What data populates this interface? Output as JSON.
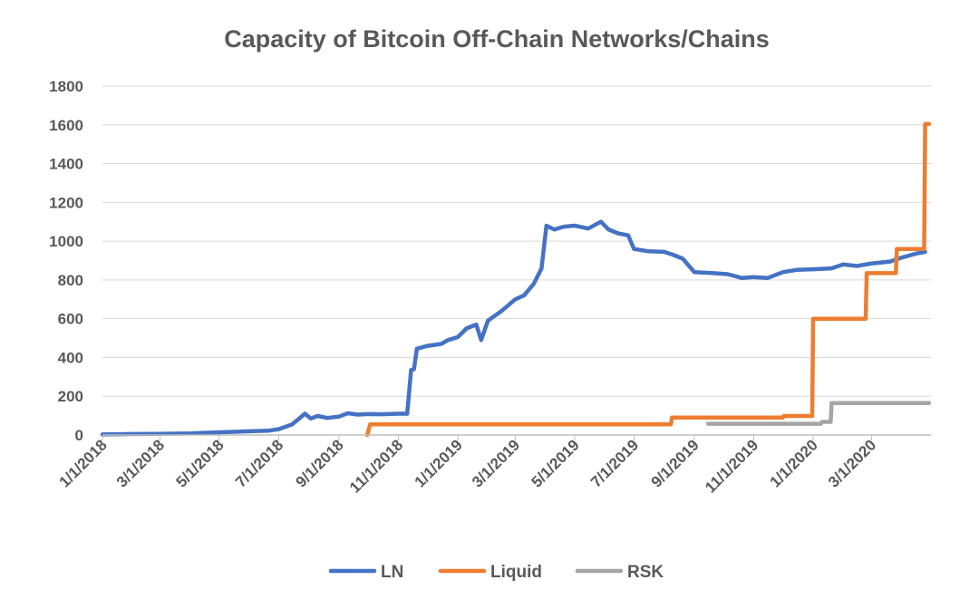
{
  "chart_data": {
    "type": "line",
    "title": "Capacity of Bitcoin Off-Chain Networks/Chains",
    "xlabel": "",
    "ylabel": "",
    "x_axis": {
      "start": "2018-01-01",
      "end": "2020-05-01",
      "tick_labels": [
        "1/1/2018",
        "3/1/2018",
        "5/1/2018",
        "7/1/2018",
        "9/1/2018",
        "11/1/2018",
        "1/1/2019",
        "3/1/2019",
        "5/1/2019",
        "7/1/2019",
        "9/1/2019",
        "11/1/2019",
        "1/1/2020",
        "3/1/2020"
      ],
      "tick_dates": [
        "2018-01-01",
        "2018-03-01",
        "2018-05-01",
        "2018-07-01",
        "2018-09-01",
        "2018-11-01",
        "2019-01-01",
        "2019-03-01",
        "2019-05-01",
        "2019-07-01",
        "2019-09-01",
        "2019-11-01",
        "2020-01-01",
        "2020-03-01"
      ]
    },
    "ylim": [
      0,
      1800
    ],
    "y_ticks": [
      0,
      200,
      400,
      600,
      800,
      1000,
      1200,
      1400,
      1600,
      1800
    ],
    "y_tick_labels": [
      "0",
      "200",
      "400",
      "600",
      "800",
      "1000",
      "1200",
      "1400",
      "1600",
      "1800"
    ],
    "grid": true,
    "legend_position": "bottom",
    "series": [
      {
        "name": "LN",
        "color": "#4472C4",
        "step": false,
        "points": [
          [
            "2018-01-01",
            3
          ],
          [
            "2018-02-01",
            5
          ],
          [
            "2018-03-01",
            6
          ],
          [
            "2018-04-01",
            8
          ],
          [
            "2018-05-01",
            14
          ],
          [
            "2018-06-01",
            19
          ],
          [
            "2018-06-20",
            22
          ],
          [
            "2018-07-01",
            30
          ],
          [
            "2018-07-15",
            55
          ],
          [
            "2018-07-28",
            110
          ],
          [
            "2018-08-03",
            85
          ],
          [
            "2018-08-10",
            98
          ],
          [
            "2018-08-20",
            88
          ],
          [
            "2018-09-01",
            95
          ],
          [
            "2018-09-10",
            112
          ],
          [
            "2018-09-20",
            105
          ],
          [
            "2018-10-01",
            108
          ],
          [
            "2018-10-15",
            107
          ],
          [
            "2018-11-01",
            110
          ],
          [
            "2018-11-10",
            110
          ],
          [
            "2018-11-14",
            335
          ],
          [
            "2018-11-17",
            340
          ],
          [
            "2018-11-20",
            445
          ],
          [
            "2018-12-01",
            460
          ],
          [
            "2018-12-15",
            470
          ],
          [
            "2018-12-22",
            490
          ],
          [
            "2019-01-01",
            505
          ],
          [
            "2019-01-10",
            550
          ],
          [
            "2019-01-20",
            570
          ],
          [
            "2019-01-25",
            490
          ],
          [
            "2019-02-01",
            590
          ],
          [
            "2019-02-15",
            640
          ],
          [
            "2019-03-01",
            700
          ],
          [
            "2019-03-10",
            720
          ],
          [
            "2019-03-20",
            780
          ],
          [
            "2019-03-28",
            860
          ],
          [
            "2019-04-02",
            1080
          ],
          [
            "2019-04-10",
            1060
          ],
          [
            "2019-04-20",
            1075
          ],
          [
            "2019-05-01",
            1080
          ],
          [
            "2019-05-15",
            1065
          ],
          [
            "2019-05-28",
            1100
          ],
          [
            "2019-06-05",
            1060
          ],
          [
            "2019-06-15",
            1040
          ],
          [
            "2019-06-25",
            1030
          ],
          [
            "2019-07-01",
            960
          ],
          [
            "2019-07-15",
            948
          ],
          [
            "2019-08-01",
            945
          ],
          [
            "2019-08-10",
            930
          ],
          [
            "2019-08-20",
            910
          ],
          [
            "2019-09-01",
            840
          ],
          [
            "2019-09-20",
            835
          ],
          [
            "2019-10-05",
            830
          ],
          [
            "2019-10-20",
            810
          ],
          [
            "2019-11-01",
            815
          ],
          [
            "2019-11-15",
            810
          ],
          [
            "2019-12-01",
            840
          ],
          [
            "2019-12-15",
            852
          ],
          [
            "2020-01-01",
            855
          ],
          [
            "2020-01-20",
            860
          ],
          [
            "2020-02-01",
            880
          ],
          [
            "2020-02-15",
            872
          ],
          [
            "2020-03-01",
            885
          ],
          [
            "2020-03-20",
            895
          ],
          [
            "2020-04-01",
            915
          ],
          [
            "2020-04-15",
            935
          ],
          [
            "2020-04-25",
            945
          ]
        ]
      },
      {
        "name": "Liquid",
        "color": "#ED7D31",
        "step": true,
        "points": [
          [
            "2018-09-30",
            0
          ],
          [
            "2018-10-03",
            55
          ],
          [
            "2019-08-08",
            55
          ],
          [
            "2019-08-09",
            90
          ],
          [
            "2019-12-01",
            90
          ],
          [
            "2019-12-02",
            98
          ],
          [
            "2019-12-31",
            98
          ],
          [
            "2020-01-01",
            600
          ],
          [
            "2020-02-24",
            600
          ],
          [
            "2020-02-25",
            835
          ],
          [
            "2020-03-26",
            835
          ],
          [
            "2020-03-27",
            960
          ],
          [
            "2020-04-24",
            960
          ],
          [
            "2020-04-25",
            1605
          ],
          [
            "2020-04-29",
            1605
          ]
        ]
      },
      {
        "name": "RSK",
        "color": "#A5A5A5",
        "step": true,
        "points": [
          [
            "2019-09-15",
            58
          ],
          [
            "2020-01-09",
            58
          ],
          [
            "2020-01-10",
            68
          ],
          [
            "2020-01-19",
            68
          ],
          [
            "2020-01-20",
            165
          ],
          [
            "2020-04-29",
            165
          ]
        ]
      }
    ]
  }
}
